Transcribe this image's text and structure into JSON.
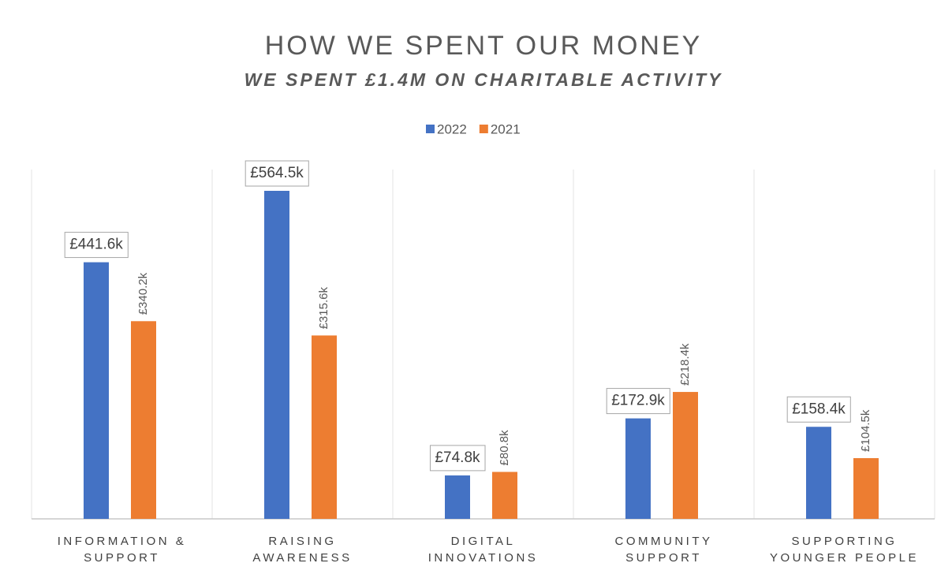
{
  "chart_data": {
    "type": "bar",
    "title": "HOW WE SPENT OUR MONEY",
    "subtitle": "WE SPENT £1.4M ON CHARITABLE ACTIVITY",
    "categories": [
      "INFORMATION &\nSUPPORT",
      "RAISING\nAWARENESS",
      "DIGITAL\nINNOVATIONS",
      "COMMUNITY\nSUPPORT",
      "SUPPORTING\nYOUNGER PEOPLE"
    ],
    "series": [
      {
        "name": "2022",
        "color": "#4472c4",
        "values": [
          441.6,
          564.5,
          74.8,
          172.9,
          158.4
        ],
        "value_labels": [
          "£441.6k",
          "£564.5k",
          "£74.8k",
          "£172.9k",
          "£158.4k"
        ]
      },
      {
        "name": "2021",
        "color": "#ed7d31",
        "values": [
          340.2,
          315.6,
          80.8,
          218.4,
          104.5
        ],
        "value_labels": [
          "£340.2k",
          "£315.6k",
          "£80.8k",
          "£218.4k",
          "£104.5k"
        ]
      }
    ],
    "legend": "top"
  }
}
